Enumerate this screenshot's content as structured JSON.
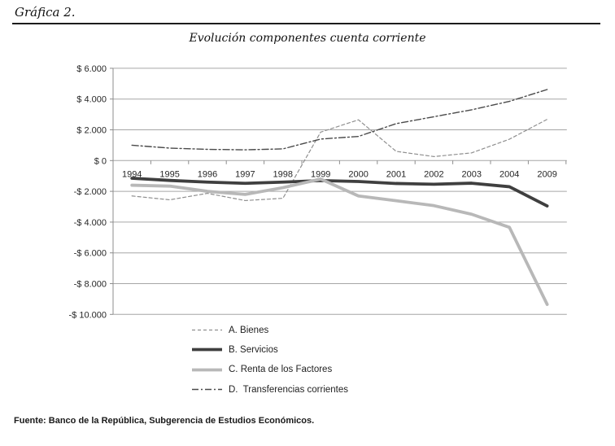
{
  "figure": {
    "label": "Gráfica 2.",
    "source": "Fuente: Banco de la República, Subgerencia de Estudios Económicos."
  },
  "chart_data": {
    "type": "line",
    "title": "Evolución componentes cuenta corriente",
    "categories": [
      "1994",
      "1995",
      "1996",
      "1997",
      "1998",
      "1999",
      "2000",
      "2001",
      "2002",
      "2003",
      "2004",
      "2009"
    ],
    "xlabel": "",
    "ylabel": "",
    "ylim": [
      -10000,
      6000
    ],
    "grid": true,
    "legend_position": "bottom-left",
    "y_ticks": [
      {
        "v": 6000,
        "label": "$ 6.000"
      },
      {
        "v": 4000,
        "label": "$ 4.000"
      },
      {
        "v": 2000,
        "label": "$ 2.000"
      },
      {
        "v": 0,
        "label": "$ 0"
      },
      {
        "v": -2000,
        "label": "-$ 2.000"
      },
      {
        "v": -4000,
        "label": "-$ 4.000"
      },
      {
        "v": -6000,
        "label": "-$ 6.000"
      },
      {
        "v": -8000,
        "label": "-$ 8.000"
      },
      {
        "v": -10000,
        "label": "-$ 10.000"
      }
    ],
    "draw_order": [
      0,
      3,
      1,
      2
    ],
    "series": [
      {
        "name": "A. Bienes",
        "values": [
          -2300,
          -2550,
          -2130,
          -2600,
          -2450,
          1850,
          2650,
          600,
          260,
          500,
          1390,
          2680
        ],
        "color": "#8f8f8f",
        "width": 1.2,
        "dash": "4 3"
      },
      {
        "name": "B. Servicios",
        "values": [
          -1150,
          -1290,
          -1400,
          -1480,
          -1400,
          -1300,
          -1360,
          -1490,
          -1540,
          -1470,
          -1700,
          -2950
        ],
        "color": "#3f3f3f",
        "width": 3.8,
        "dash": ""
      },
      {
        "name": "C. Renta de los Factores",
        "values": [
          -1600,
          -1660,
          -2000,
          -2200,
          -1760,
          -1200,
          -2300,
          -2610,
          -2930,
          -3490,
          -4340,
          -9350
        ],
        "color": "#b8b8b8",
        "width": 3.8,
        "dash": ""
      },
      {
        "name": "D.  Transferencias corrientes",
        "values": [
          1000,
          810,
          730,
          700,
          760,
          1400,
          1570,
          2400,
          2850,
          3300,
          3850,
          4620
        ],
        "color": "#4a4a4a",
        "width": 1.4,
        "dash": "8 3 2 3"
      }
    ]
  }
}
